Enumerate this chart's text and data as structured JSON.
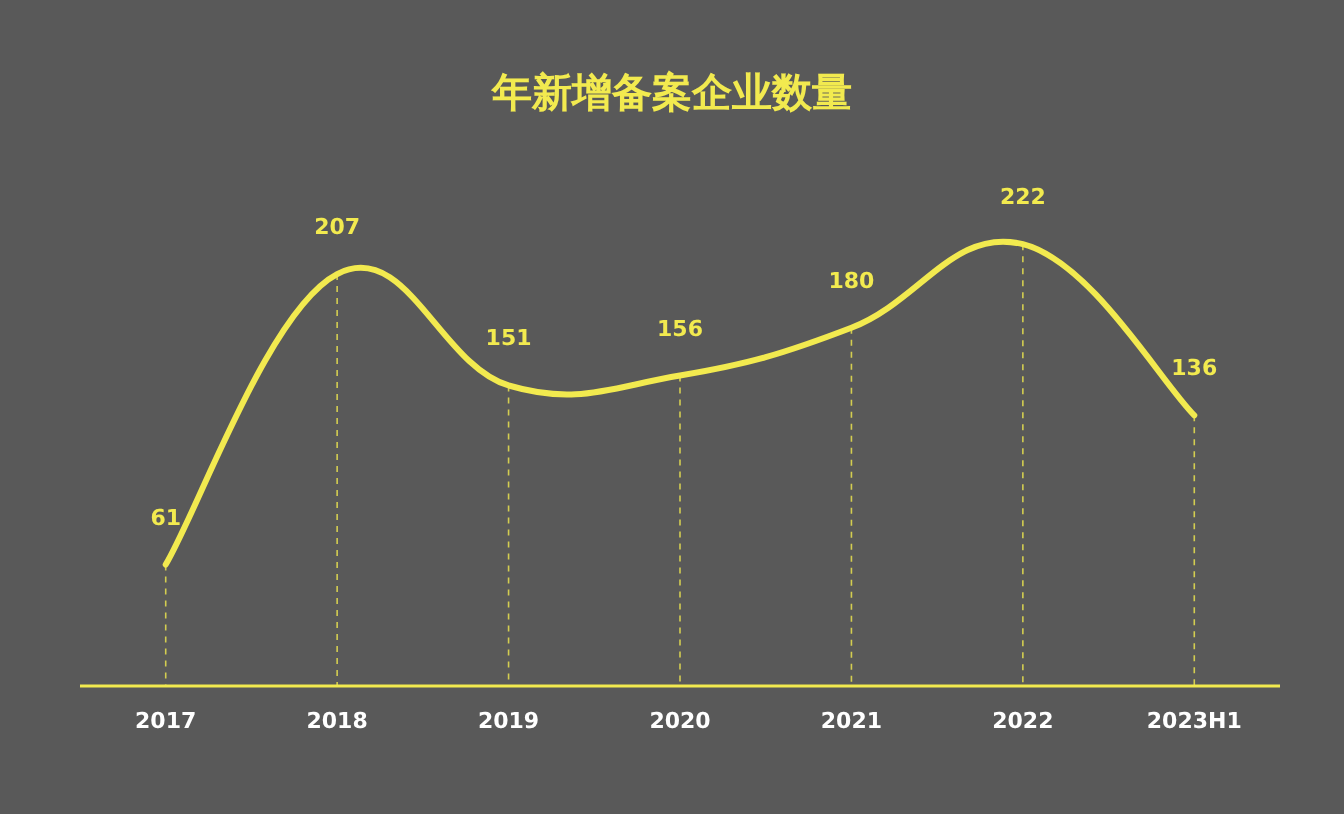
{
  "chart_data": {
    "type": "line",
    "title": "年新增备案企业数量",
    "categories": [
      "2017",
      "2018",
      "2019",
      "2020",
      "2021",
      "2022",
      "2023H1"
    ],
    "values": [
      61,
      207,
      151,
      156,
      180,
      222,
      136
    ],
    "color": "#f2ea4f",
    "data_labels": true,
    "grid": "x"
  }
}
